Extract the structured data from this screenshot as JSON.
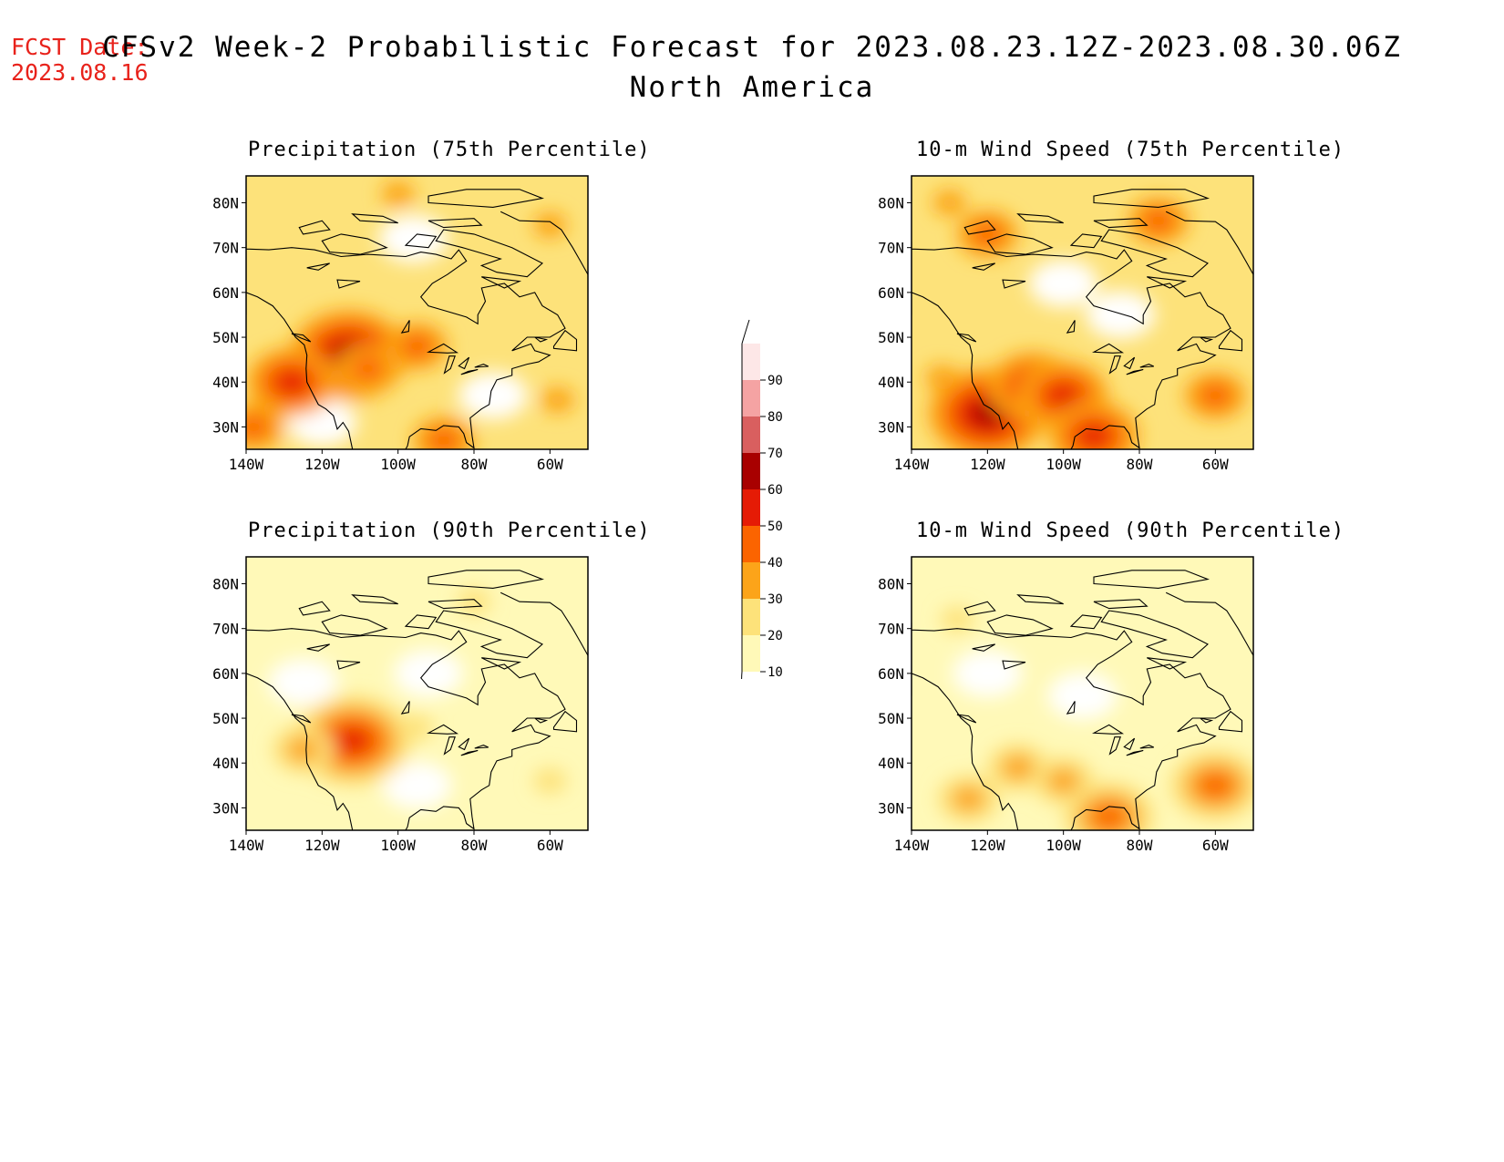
{
  "header": {
    "fcst_label": "FCST Date:",
    "fcst_date": "2023.08.16",
    "title": "CFSv2 Week-2 Probabilistic Forecast for 2023.08.23.12Z-2023.08.30.06Z",
    "subtitle": "North America"
  },
  "colors": {
    "levels": [
      "#fff9b8",
      "#fde27a",
      "#fca419",
      "#fb6400",
      "#e51b05",
      "#a80000",
      "#d95f5f",
      "#f5a3a3",
      "#fde7e7"
    ],
    "coast": "#000000",
    "fcst": "#e8221b"
  },
  "colorbar": {
    "labels": [
      "10",
      "20",
      "30",
      "40",
      "50",
      "60",
      "70",
      "80",
      "90"
    ]
  },
  "axes": {
    "lon_labels": [
      "140W",
      "120W",
      "100W",
      "80W",
      "60W"
    ],
    "lat_labels": [
      "80N",
      "70N",
      "60N",
      "50N",
      "40N",
      "30N"
    ]
  },
  "panels": [
    {
      "title": "Precipitation (75th Percentile)",
      "level": 1,
      "hotspots": [
        {
          "lon": -113,
          "lat": 46,
          "level": 5
        },
        {
          "lon": -108,
          "lat": 43,
          "level": 3
        },
        {
          "lon": -128,
          "lat": 40,
          "level": 4
        },
        {
          "lon": -95,
          "lat": 48,
          "level": 3
        },
        {
          "lon": -58,
          "lat": 36,
          "level": 2
        },
        {
          "lon": -88,
          "lat": 27,
          "level": 3
        },
        {
          "lon": -138,
          "lat": 30,
          "level": 3
        },
        {
          "lon": -60,
          "lat": 75,
          "level": 2
        },
        {
          "lon": -100,
          "lat": 82,
          "level": 2
        }
      ],
      "blanks": [
        {
          "lon": -120,
          "lat": 31
        },
        {
          "lon": -96,
          "lat": 72
        },
        {
          "lon": -75,
          "lat": 37
        }
      ]
    },
    {
      "title": "10-m Wind Speed (75th Percentile)",
      "level": 1,
      "hotspots": [
        {
          "lon": -120,
          "lat": 33,
          "level": 5
        },
        {
          "lon": -108,
          "lat": 39,
          "level": 4
        },
        {
          "lon": -100,
          "lat": 37,
          "level": 4
        },
        {
          "lon": -92,
          "lat": 28,
          "level": 4
        },
        {
          "lon": -60,
          "lat": 37,
          "level": 3
        },
        {
          "lon": -132,
          "lat": 41,
          "level": 2
        },
        {
          "lon": -120,
          "lat": 73,
          "level": 3
        },
        {
          "lon": -75,
          "lat": 76,
          "level": 3
        },
        {
          "lon": -130,
          "lat": 80,
          "level": 2
        }
      ],
      "blanks": [
        {
          "lon": -85,
          "lat": 55
        },
        {
          "lon": -100,
          "lat": 62
        }
      ]
    },
    {
      "title": "Precipitation (90th Percentile)",
      "level": 0,
      "hotspots": [
        {
          "lon": -112,
          "lat": 45,
          "level": 4
        },
        {
          "lon": -125,
          "lat": 43,
          "level": 2
        },
        {
          "lon": -60,
          "lat": 36,
          "level": 1
        },
        {
          "lon": -95,
          "lat": 48,
          "level": 1
        },
        {
          "lon": -80,
          "lat": 76,
          "level": 1
        }
      ],
      "blanks": [
        {
          "lon": -92,
          "lat": 60
        },
        {
          "lon": -125,
          "lat": 58
        },
        {
          "lon": -95,
          "lat": 35
        }
      ]
    },
    {
      "title": "10-m Wind Speed (90th Percentile)",
      "level": 0,
      "hotspots": [
        {
          "lon": -88,
          "lat": 28,
          "level": 3
        },
        {
          "lon": -60,
          "lat": 35,
          "level": 3
        },
        {
          "lon": -112,
          "lat": 39,
          "level": 2
        },
        {
          "lon": -100,
          "lat": 36,
          "level": 2
        },
        {
          "lon": -125,
          "lat": 32,
          "level": 2
        },
        {
          "lon": -128,
          "lat": 72,
          "level": 1
        }
      ],
      "blanks": [
        {
          "lon": -95,
          "lat": 55
        },
        {
          "lon": -120,
          "lat": 60
        }
      ]
    }
  ]
}
